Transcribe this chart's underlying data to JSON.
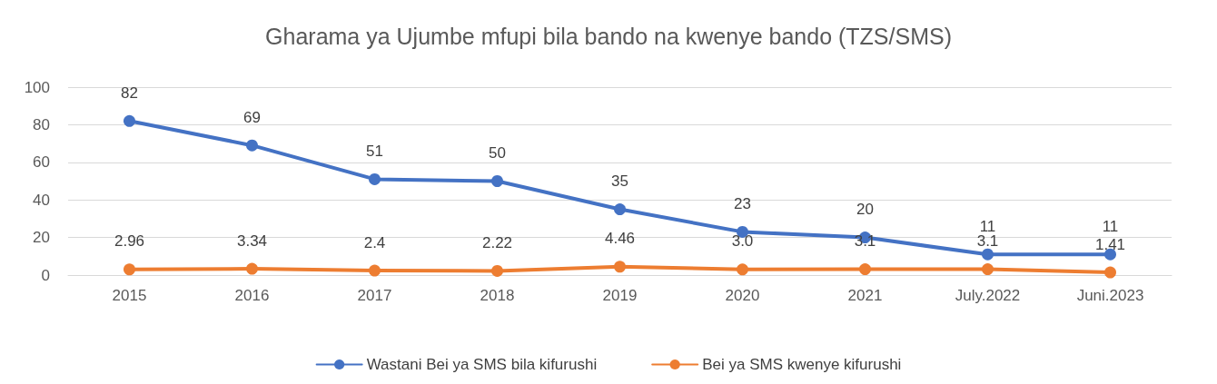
{
  "chart_data": {
    "type": "line",
    "title": "Gharama ya Ujumbe mfupi bila bando na kwenye bando (TZS/SMS)",
    "categories": [
      "2015",
      "2016",
      "2017",
      "2018",
      "2019",
      "2020",
      "2021",
      "July.2022",
      "Juni.2023"
    ],
    "series": [
      {
        "name": "Wastani Bei ya SMS bila kifurushi",
        "color": "#4472c4",
        "values": [
          82,
          69,
          51,
          50,
          35,
          23,
          20,
          11,
          11
        ],
        "value_labels": [
          "82",
          "69",
          "51",
          "50",
          "35",
          "23",
          "20",
          "11",
          "11"
        ]
      },
      {
        "name": "Bei ya SMS kwenye kifurushi",
        "color": "#ed7d31",
        "values": [
          2.96,
          3.34,
          2.4,
          2.22,
          4.46,
          3.0,
          3.1,
          3.1,
          1.41
        ],
        "value_labels": [
          "2.96",
          "3.34",
          "2.4",
          "2.22",
          "4.46",
          "3.0",
          "3.1",
          "3.1",
          "1.41"
        ]
      }
    ],
    "ylim": [
      0,
      100
    ],
    "yticks": [
      0,
      20,
      40,
      60,
      80,
      100
    ],
    "grid": "y",
    "legend": "bottom",
    "marker": "circle",
    "line_style": "solid"
  }
}
